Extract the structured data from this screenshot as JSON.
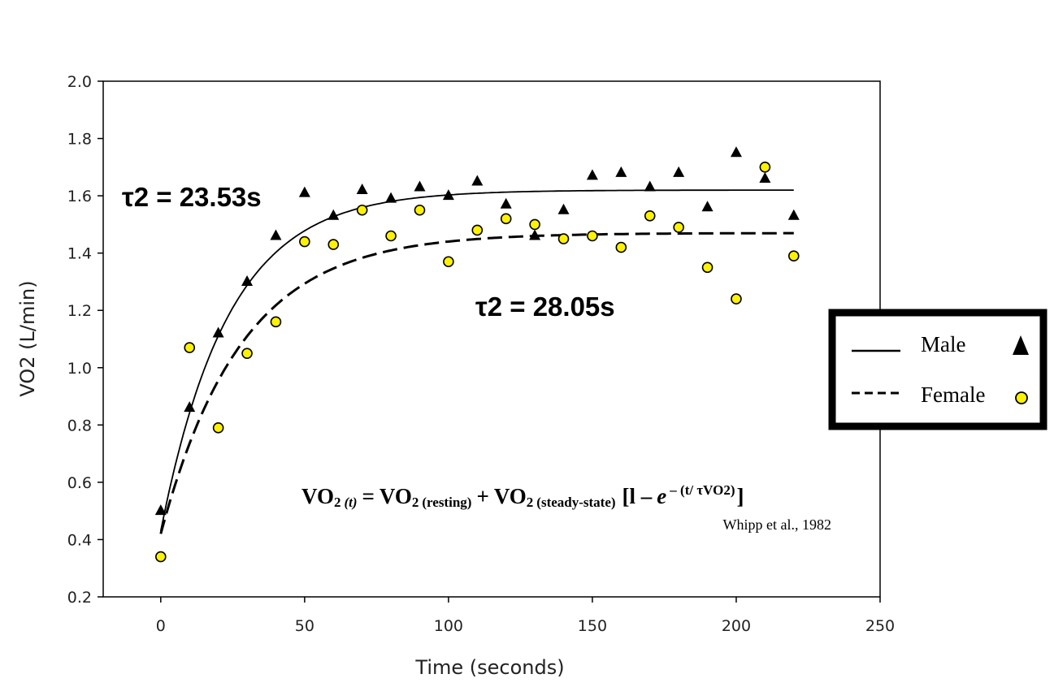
{
  "chart_data": {
    "type": "scatter",
    "xlabel": "Time (seconds)",
    "ylabel": "VO2 (L/min)",
    "xlim": [
      -20,
      250
    ],
    "ylim": [
      0.2,
      2.0
    ],
    "x_ticks": [
      "0",
      "50",
      "100",
      "150",
      "200",
      "250"
    ],
    "y_ticks": [
      "0.2",
      "0.4",
      "0.6",
      "0.8",
      "1.0",
      "1.2",
      "1.4",
      "1.6",
      "1.8",
      "2.0"
    ],
    "x_tick_values": [
      0,
      50,
      100,
      150,
      200,
      250
    ],
    "y_tick_values": [
      0.2,
      0.4,
      0.6,
      0.8,
      1.0,
      1.2,
      1.4,
      1.6,
      1.8,
      2.0
    ],
    "grid": false,
    "legend_placement": "right",
    "series": [
      {
        "name": "Male",
        "marker": "triangle",
        "line": "solid",
        "color": "#000000",
        "x": [
          0,
          10,
          20,
          30,
          40,
          50,
          60,
          70,
          80,
          90,
          100,
          110,
          120,
          130,
          140,
          150,
          160,
          170,
          180,
          190,
          200,
          210,
          220
        ],
        "y": [
          0.5,
          0.86,
          1.12,
          1.3,
          1.46,
          1.61,
          1.53,
          1.62,
          1.59,
          1.63,
          1.6,
          1.65,
          1.57,
          1.46,
          1.55,
          1.67,
          1.68,
          1.63,
          1.68,
          1.56,
          1.75,
          1.66,
          1.53
        ],
        "fit": {
          "baseline": 0.43,
          "amplitude": 1.19,
          "tau": 23.53
        }
      },
      {
        "name": "Female",
        "marker": "circle",
        "line": "dashed",
        "color": "#FFF200",
        "x": [
          0,
          10,
          20,
          30,
          40,
          50,
          60,
          70,
          80,
          90,
          100,
          110,
          120,
          130,
          140,
          150,
          160,
          170,
          180,
          190,
          200,
          210,
          220
        ],
        "y": [
          0.34,
          1.07,
          0.79,
          1.05,
          1.16,
          1.44,
          1.43,
          1.55,
          1.46,
          1.55,
          1.37,
          1.48,
          1.52,
          1.5,
          1.45,
          1.46,
          1.42,
          1.53,
          1.49,
          1.35,
          1.24,
          1.7,
          1.39
        ],
        "fit": {
          "baseline": 0.42,
          "amplitude": 1.05,
          "tau": 28.05
        }
      }
    ],
    "annotations": {
      "male_tau": "τ2 = 23.53s",
      "female_tau": "τ2 = 28.05s",
      "equation": {
        "vo2": "VO",
        "two": "2",
        "t": "(t)",
        "eq": "=",
        "resting": "(resting)",
        "plus": "+",
        "steady": "(steady-state)",
        "bracket_open": "[l –",
        "e": "e",
        "exponent": "– (t/ τVO2)",
        "bracket_close": "]"
      },
      "citation": "Whipp et al., 1982"
    },
    "legend": {
      "male": "Male",
      "female": "Female"
    }
  }
}
